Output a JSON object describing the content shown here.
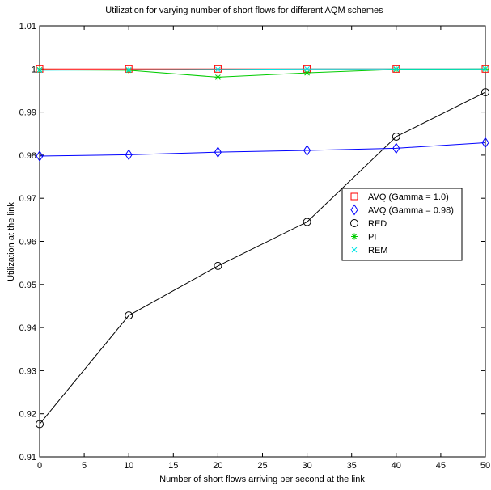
{
  "chart_data": {
    "type": "line",
    "title": "Utilization for varying number of short flows for different AQM schemes",
    "xlabel": "Number of short flows arriving per second at the link",
    "ylabel": "Utilization at the link",
    "xlim": [
      0,
      50
    ],
    "ylim": [
      0.91,
      1.01
    ],
    "xticks": [
      "0",
      "5",
      "10",
      "15",
      "20",
      "25",
      "30",
      "35",
      "40",
      "45",
      "50"
    ],
    "yticks": [
      "0.91",
      "0.92",
      "0.93",
      "0.94",
      "0.95",
      "0.96",
      "0.97",
      "0.98",
      "0.99",
      "1",
      "1.01"
    ],
    "grid": false,
    "legend_position": "center-right",
    "x": [
      0,
      10,
      20,
      30,
      40,
      50
    ],
    "series": [
      {
        "name": "AVQ (Gamma = 1.0)",
        "color": "#ff0000",
        "marker": "square",
        "values": [
          1.0,
          1.0,
          1.0,
          1.0,
          1.0,
          1.0
        ]
      },
      {
        "name": "AVQ (Gamma = 0.98)",
        "color": "#0000ff",
        "marker": "diamond",
        "values": [
          0.9798,
          0.9801,
          0.9807,
          0.9811,
          0.9816,
          0.9829
        ]
      },
      {
        "name": "RED",
        "color": "#000000",
        "marker": "circle",
        "values": [
          0.9176,
          0.9428,
          0.9543,
          0.9645,
          0.9843,
          0.9946
        ]
      },
      {
        "name": "PI",
        "color": "#00cc00",
        "marker": "asterisk",
        "values": [
          0.9998,
          0.9997,
          0.9981,
          0.9991,
          0.9999,
          1.0
        ]
      },
      {
        "name": "REM",
        "color": "#00e5e5",
        "marker": "x",
        "values": [
          0.9997,
          0.9998,
          0.9999,
          1.0,
          1.0,
          1.0
        ]
      }
    ]
  }
}
